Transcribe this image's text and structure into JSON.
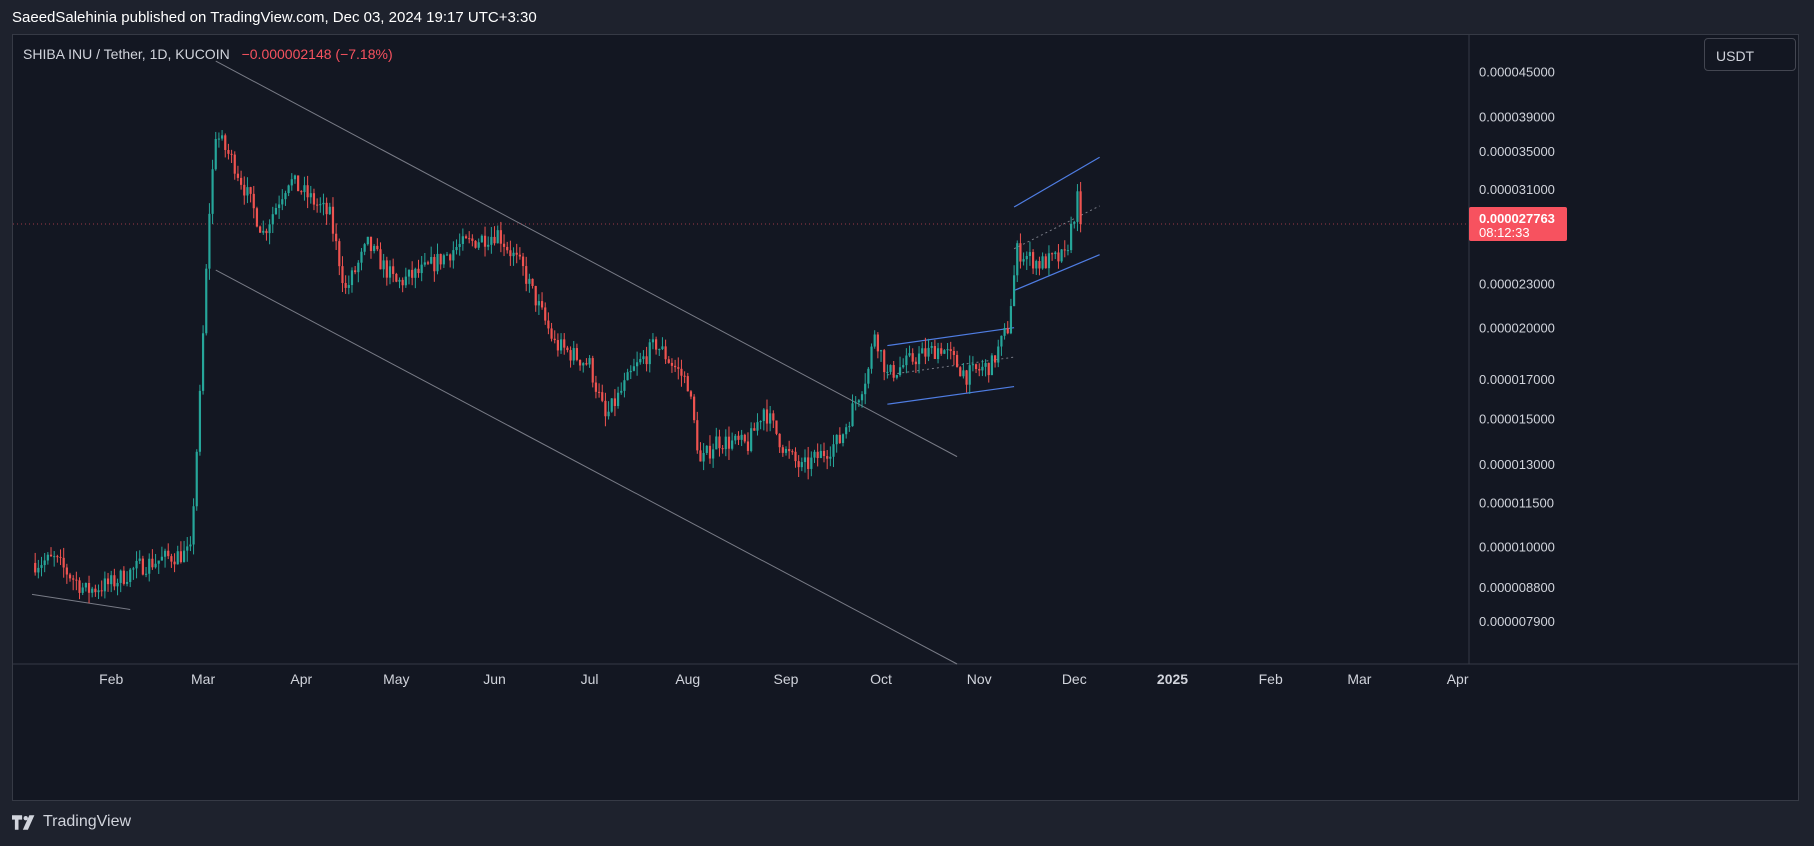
{
  "header": {
    "published_by": "SaeedSalehinia published on TradingView.com, Dec 03, 2024 19:17 UTC+3:30"
  },
  "legend": {
    "symbol": "SHIBA INU / Tether, 1D, KUCOIN",
    "change": "−0.000002148 (−7.18%)"
  },
  "currency_button": "USDT",
  "footer": {
    "brand": "TradingView"
  },
  "colors": {
    "up": "#26a69a",
    "down": "#ef5350",
    "line": "#787b86",
    "channel": "#4f7de3",
    "price_badge": "#f7525f"
  },
  "chart_data": {
    "type": "candlestick",
    "scale": "log",
    "symbol": "SHIBA INU / Tether",
    "interval": "1D",
    "exchange": "KUCOIN",
    "ylim": [
      6.9e-06,
      5.05e-05
    ],
    "y_ticks": [
      {
        "value": 4.5e-05,
        "label": "0.000045000"
      },
      {
        "value": 3.9e-05,
        "label": "0.000039000"
      },
      {
        "value": 3.5e-05,
        "label": "0.000035000"
      },
      {
        "value": 3.1e-05,
        "label": "0.000031000"
      },
      {
        "value": 2.3e-05,
        "label": "0.000023000"
      },
      {
        "value": 2e-05,
        "label": "0.000020000"
      },
      {
        "value": 1.7e-05,
        "label": "0.000017000"
      },
      {
        "value": 1.5e-05,
        "label": "0.000015000"
      },
      {
        "value": 1.3e-05,
        "label": "0.000013000"
      },
      {
        "value": 1.15e-05,
        "label": "0.000011500"
      },
      {
        "value": 1e-05,
        "label": "0.000010000"
      },
      {
        "value": 8.8e-06,
        "label": "0.000008800"
      },
      {
        "value": 7.9e-06,
        "label": "0.000007900"
      }
    ],
    "x_ticks": [
      {
        "date": "2024-02-01",
        "label": "Feb",
        "bold": false
      },
      {
        "date": "2024-03-01",
        "label": "Mar",
        "bold": false
      },
      {
        "date": "2024-04-01",
        "label": "Apr",
        "bold": false
      },
      {
        "date": "2024-05-01",
        "label": "May",
        "bold": false
      },
      {
        "date": "2024-06-01",
        "label": "Jun",
        "bold": false
      },
      {
        "date": "2024-07-01",
        "label": "Jul",
        "bold": false
      },
      {
        "date": "2024-08-01",
        "label": "Aug",
        "bold": false
      },
      {
        "date": "2024-09-01",
        "label": "Sep",
        "bold": false
      },
      {
        "date": "2024-10-01",
        "label": "Oct",
        "bold": false
      },
      {
        "date": "2024-11-01",
        "label": "Nov",
        "bold": false
      },
      {
        "date": "2024-12-01",
        "label": "Dec",
        "bold": false
      },
      {
        "date": "2025-01-01",
        "label": "2025",
        "bold": true
      },
      {
        "date": "2025-02-01",
        "label": "Feb",
        "bold": false
      },
      {
        "date": "2025-03-01",
        "label": "Mar",
        "bold": false
      },
      {
        "date": "2025-04-01",
        "label": "Apr",
        "bold": false
      }
    ],
    "last_price": {
      "value": 2.7763e-05,
      "label": "0.000027763",
      "countdown": "08:12:33"
    },
    "price_path": [
      {
        "date": "2024-01-08",
        "price": 9.5e-06
      },
      {
        "date": "2024-01-14",
        "price": 9.6e-06
      },
      {
        "date": "2024-01-24",
        "price": 8.7e-06
      },
      {
        "date": "2024-02-01",
        "price": 8.9e-06
      },
      {
        "date": "2024-02-10",
        "price": 9.4e-06
      },
      {
        "date": "2024-02-20",
        "price": 9.7e-06
      },
      {
        "date": "2024-02-26",
        "price": 9.8e-06
      },
      {
        "date": "2024-02-29",
        "price": 1.6e-05
      },
      {
        "date": "2024-03-03",
        "price": 2.9e-05
      },
      {
        "date": "2024-03-05",
        "price": 3.7e-05
      },
      {
        "date": "2024-03-11",
        "price": 3.35e-05
      },
      {
        "date": "2024-03-20",
        "price": 2.7e-05
      },
      {
        "date": "2024-03-28",
        "price": 3.2e-05
      },
      {
        "date": "2024-04-10",
        "price": 2.85e-05
      },
      {
        "date": "2024-04-15",
        "price": 2.25e-05
      },
      {
        "date": "2024-04-22",
        "price": 2.6e-05
      },
      {
        "date": "2024-05-01",
        "price": 2.3e-05
      },
      {
        "date": "2024-05-10",
        "price": 2.4e-05
      },
      {
        "date": "2024-05-20",
        "price": 2.58e-05
      },
      {
        "date": "2024-06-02",
        "price": 2.7e-05
      },
      {
        "date": "2024-06-10",
        "price": 2.4e-05
      },
      {
        "date": "2024-06-20",
        "price": 1.9e-05
      },
      {
        "date": "2024-07-01",
        "price": 1.78e-05
      },
      {
        "date": "2024-07-06",
        "price": 1.5e-05
      },
      {
        "date": "2024-07-15",
        "price": 1.75e-05
      },
      {
        "date": "2024-07-22",
        "price": 1.9e-05
      },
      {
        "date": "2024-08-01",
        "price": 1.68e-05
      },
      {
        "date": "2024-08-05",
        "price": 1.3e-05
      },
      {
        "date": "2024-08-10",
        "price": 1.4e-05
      },
      {
        "date": "2024-08-20",
        "price": 1.38e-05
      },
      {
        "date": "2024-08-25",
        "price": 1.55e-05
      },
      {
        "date": "2024-09-01",
        "price": 1.35e-05
      },
      {
        "date": "2024-09-06",
        "price": 1.28e-05
      },
      {
        "date": "2024-09-18",
        "price": 1.4e-05
      },
      {
        "date": "2024-09-27",
        "price": 1.75e-05
      },
      {
        "date": "2024-09-29",
        "price": 1.98e-05
      },
      {
        "date": "2024-10-03",
        "price": 1.72e-05
      },
      {
        "date": "2024-10-12",
        "price": 1.82e-05
      },
      {
        "date": "2024-10-20",
        "price": 1.88e-05
      },
      {
        "date": "2024-10-28",
        "price": 1.72e-05
      },
      {
        "date": "2024-11-05",
        "price": 1.78e-05
      },
      {
        "date": "2024-11-10",
        "price": 2e-05
      },
      {
        "date": "2024-11-13",
        "price": 2.55e-05
      },
      {
        "date": "2024-11-20",
        "price": 2.45e-05
      },
      {
        "date": "2024-11-28",
        "price": 2.5e-05
      },
      {
        "date": "2024-12-02",
        "price": 3e-05
      },
      {
        "date": "2024-12-03",
        "price": 2.7763e-05
      }
    ],
    "trend_lines": [
      {
        "from": {
          "date": "2024-01-07",
          "price": 8.6e-06
        },
        "to": {
          "date": "2024-02-07",
          "price": 8.2e-06
        }
      },
      {
        "from": {
          "date": "2024-03-05",
          "price": 4.65e-05
        },
        "to": {
          "date": "2024-10-25",
          "price": 1.33e-05
        }
      },
      {
        "from": {
          "date": "2024-03-05",
          "price": 2.4e-05
        },
        "to": {
          "date": "2024-10-25",
          "price": 6.9e-06
        }
      }
    ],
    "channels": [
      {
        "upper": [
          {
            "date": "2024-10-03",
            "price": 1.89e-05
          },
          {
            "date": "2024-11-12",
            "price": 2e-05
          }
        ],
        "lower": [
          {
            "date": "2024-10-03",
            "price": 1.57e-05
          },
          {
            "date": "2024-11-12",
            "price": 1.66e-05
          }
        ]
      },
      {
        "upper": [
          {
            "date": "2024-11-12",
            "price": 2.93e-05
          },
          {
            "date": "2024-12-09",
            "price": 3.43e-05
          }
        ],
        "lower": [
          {
            "date": "2024-11-12",
            "price": 2.25e-05
          },
          {
            "date": "2024-12-09",
            "price": 2.52e-05
          }
        ]
      }
    ]
  }
}
